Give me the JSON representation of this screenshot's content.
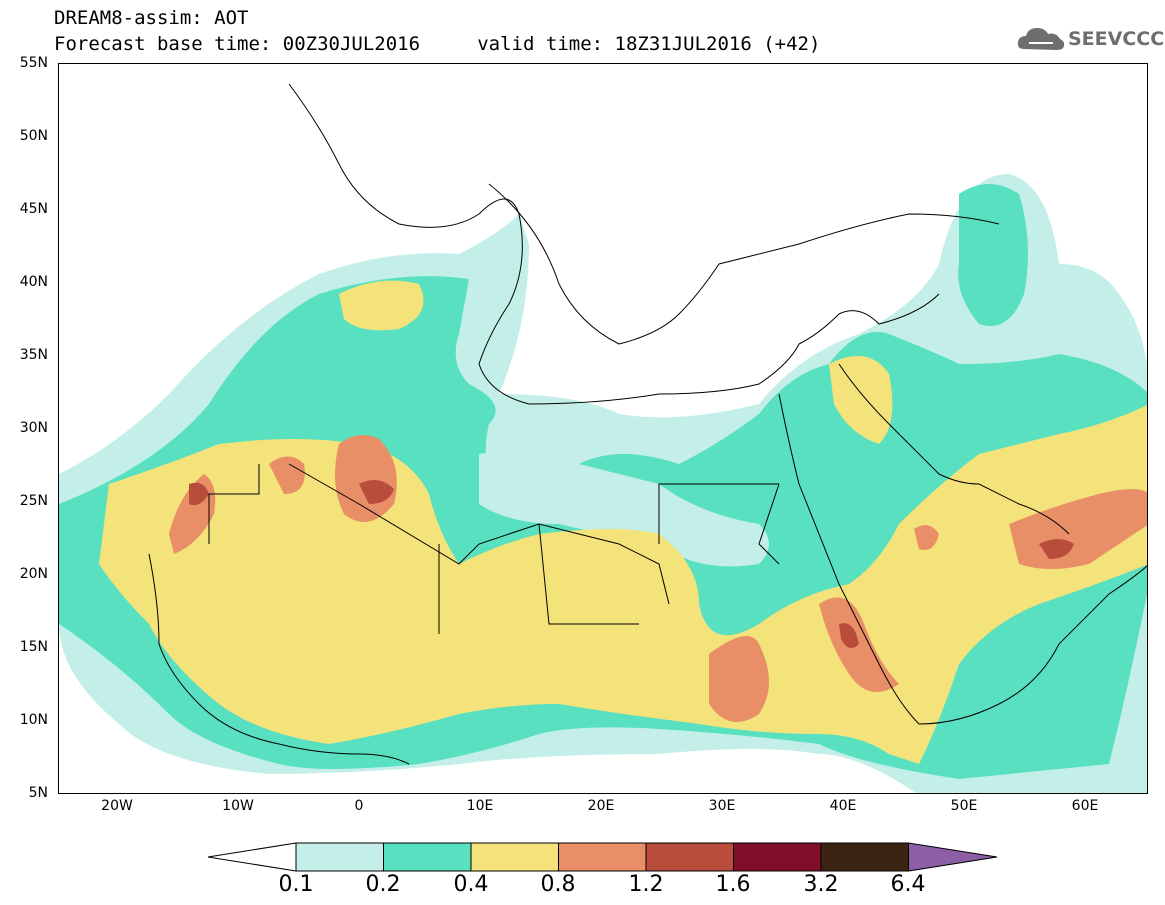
{
  "header": {
    "line1": "DREAM8-assim: AOT",
    "line2": "Forecast base time: 00Z30JUL2016     valid time: 18Z31JUL2016 (+42)"
  },
  "logo": {
    "text": "SEEVCCC",
    "icon": "cloud-icon"
  },
  "map": {
    "lat_labels": [
      "55N",
      "50N",
      "45N",
      "40N",
      "35N",
      "30N",
      "25N",
      "20N",
      "15N",
      "10N",
      "5N"
    ],
    "lon_labels": [
      "20W",
      "10W",
      "0",
      "10E",
      "20E",
      "30E",
      "40E",
      "50E",
      "60E"
    ],
    "lat_range": [
      5,
      55
    ],
    "lon_range": [
      -25,
      65
    ]
  },
  "colorbar": {
    "labels": [
      "0.1",
      "0.2",
      "0.4",
      "0.8",
      "1.2",
      "1.6",
      "3.2",
      "6.4"
    ],
    "colors": [
      "#ffffff",
      "#c3efe8",
      "#58e0c0",
      "#f4e27a",
      "#e88f68",
      "#b94d3c",
      "#7f0e2a",
      "#3c2413",
      "#8c5ea5"
    ]
  },
  "colors": {
    "aot_0_1": "#c3efe8",
    "aot_0_2": "#58e0c0",
    "aot_0_4": "#f4e27a",
    "aot_0_8": "#e88f68",
    "aot_1_2": "#b94d3c",
    "aot_1_6": "#7f0e2a"
  }
}
